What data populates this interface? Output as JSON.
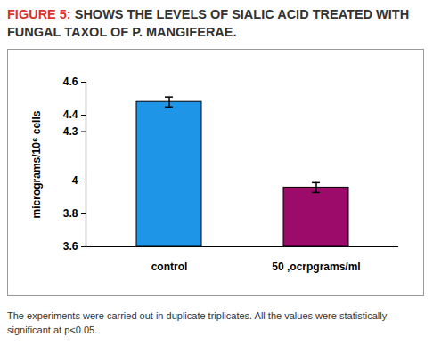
{
  "chart_data": {
    "type": "bar",
    "title": "FIGURE 5: SHOWS THE LEVELS OF SIALIC ACID TREATED WITH FUNGAL TAXOL OF P. MANGIFERAE.",
    "caption": "The experiments were carried out in duplicate triplicates. All the values were statistically significant at p<0.05.",
    "y_label": "micrograms/10⁶ cells",
    "categories": [
      "control",
      "50 ,ocrpgrams/ml"
    ],
    "values": [
      4.48,
      3.96
    ],
    "errors": [
      0.03,
      0.03
    ],
    "colors": [
      "#1e95e6",
      "#9c0a6a"
    ],
    "ylim": [
      3.6,
      4.6
    ],
    "yticks": [
      3.6,
      3.8,
      4,
      4.3,
      4.4,
      4.6
    ],
    "grid": false
  }
}
